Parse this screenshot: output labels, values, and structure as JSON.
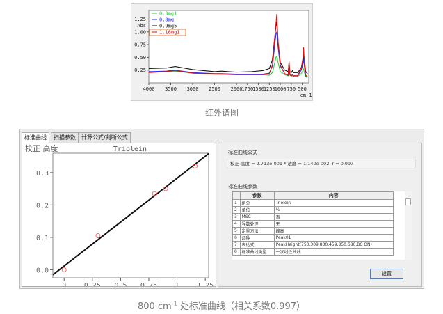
{
  "figure1": {
    "caption": "红外谱图"
  },
  "figure2": {
    "caption_prefix": "800 cm",
    "caption_sup": "-1",
    "caption_suffix": " 处标准曲线（相关系数0.997）"
  },
  "chart_data": [
    {
      "type": "line",
      "xlabel": "cm-1",
      "ylabel": "Abs",
      "xlim": [
        4000,
        350
      ],
      "ylim": [
        0,
        1.42
      ],
      "reversed_x": true,
      "xticks": [
        "4000",
        "3500",
        "3000",
        "2500",
        "2000",
        "1750",
        "1500",
        "1250",
        "1000",
        "750",
        "500"
      ],
      "yticks": [
        "0.25",
        "0.50",
        "0.75",
        "1.00",
        "1.25"
      ],
      "legend": "top-left",
      "x": [
        4000,
        3600,
        3400,
        3000,
        2500,
        2350,
        2000,
        1650,
        1400,
        1250,
        1180,
        1150,
        1100,
        1080,
        1050,
        1000,
        900,
        820,
        800,
        780,
        750,
        720,
        700,
        600,
        520,
        480,
        470,
        450,
        420,
        380
      ],
      "series": [
        {
          "name": "0.3mg1",
          "color": "#2ecc40",
          "values": [
            0.21,
            0.22,
            0.23,
            0.19,
            0.17,
            0.17,
            0.16,
            0.16,
            0.16,
            0.15,
            0.2,
            0.3,
            0.5,
            0.52,
            0.4,
            0.22,
            0.16,
            0.14,
            0.22,
            0.15,
            0.13,
            0.14,
            0.13,
            0.13,
            0.18,
            0.25,
            0.28,
            0.2,
            0.12,
            0.1
          ]
        },
        {
          "name": "0.8mg",
          "color": "#2a2aff",
          "values": [
            0.22,
            0.23,
            0.25,
            0.2,
            0.18,
            0.18,
            0.17,
            0.17,
            0.17,
            0.19,
            0.33,
            0.55,
            0.95,
            1.0,
            0.7,
            0.33,
            0.18,
            0.15,
            0.32,
            0.16,
            0.14,
            0.16,
            0.14,
            0.14,
            0.25,
            0.38,
            0.5,
            0.32,
            0.14,
            0.12
          ]
        },
        {
          "name": "0.9mg5",
          "color": "#111111",
          "values": [
            0.28,
            0.29,
            0.32,
            0.26,
            0.22,
            0.23,
            0.21,
            0.22,
            0.24,
            0.28,
            0.45,
            0.7,
            1.1,
            1.2,
            0.8,
            0.4,
            0.25,
            0.22,
            0.4,
            0.22,
            0.2,
            0.24,
            0.2,
            0.2,
            0.3,
            0.45,
            0.6,
            0.45,
            0.22,
            0.18
          ]
        },
        {
          "name": "1.16mg1",
          "color": "#e01010",
          "values": [
            0.2,
            0.22,
            0.24,
            0.19,
            0.17,
            0.17,
            0.16,
            0.16,
            0.16,
            0.18,
            0.35,
            0.65,
            1.15,
            1.35,
            0.8,
            0.35,
            0.18,
            0.15,
            0.42,
            0.16,
            0.14,
            0.16,
            0.14,
            0.14,
            0.3,
            0.5,
            0.7,
            0.4,
            0.15,
            0.12
          ]
        }
      ]
    },
    {
      "type": "scatter",
      "title": "Triolein",
      "ylabel": "校正 高度",
      "xlabel": "%",
      "xlim": [
        -0.1,
        1.28
      ],
      "ylim": [
        -0.025,
        0.36
      ],
      "xticks": [
        "0",
        "0.25",
        "0.5",
        "0.75",
        "1",
        "1.25"
      ],
      "yticks": [
        "0.0",
        "0.1",
        "0.2",
        "0.3"
      ],
      "points": [
        [
          0,
          0
        ],
        [
          0.3,
          0.105
        ],
        [
          0.8,
          0.235
        ],
        [
          0.9,
          0.25
        ],
        [
          1.16,
          0.32
        ]
      ],
      "point_color": "#ff6666",
      "fit": {
        "slope": 0.2713,
        "intercept": 0.0114,
        "color": "#111111"
      }
    }
  ],
  "software": {
    "tabs": [
      "标准曲线",
      "扫描参数",
      "计算公式/判断公式"
    ],
    "formula_title": "标准曲线公式",
    "formula": "校正 高度 = 2.713e-001 * 浓度 + 1.140e-002, r = 0.997",
    "params_title": "标准曲线参数",
    "table_headers": [
      "",
      "参数",
      "内容"
    ],
    "rows": [
      [
        "1",
        "组分",
        "Triolein"
      ],
      [
        "2",
        "单位",
        "%"
      ],
      [
        "3",
        "MSC",
        "否"
      ],
      [
        "4",
        "导数处理",
        "无"
      ],
      [
        "5",
        "定量方法",
        "峰高"
      ],
      [
        "6",
        "品种",
        "Peak01"
      ],
      [
        "7",
        "表达式",
        "PeakHeight(750.309,830.459,850.680,BC ON)"
      ],
      [
        "8",
        "标准曲线类型",
        "一次线性曲线"
      ]
    ],
    "set_button": "设置"
  }
}
